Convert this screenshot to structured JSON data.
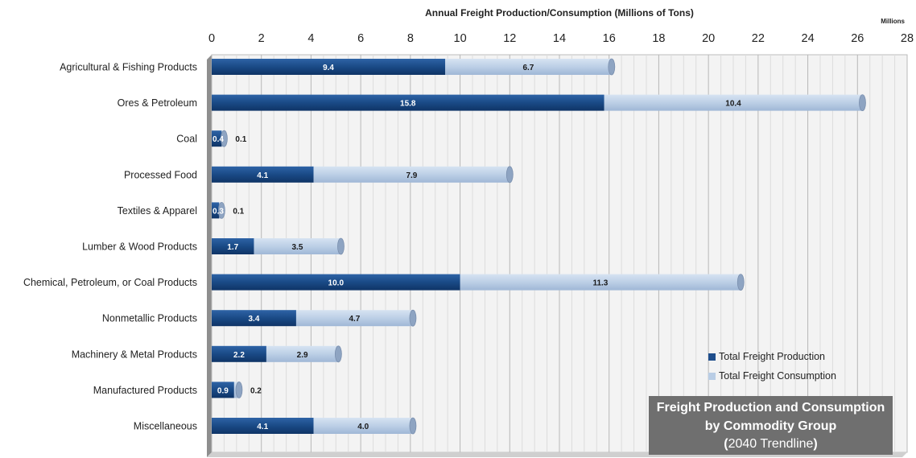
{
  "chart_data": {
    "type": "bar",
    "orientation": "horizontal",
    "stacked": true,
    "title": "Annual Freight Production/Consumption (Millions of Tons)",
    "unit_label": "Millions",
    "xlim": [
      0,
      28
    ],
    "xticks": [
      0,
      2,
      4,
      6,
      8,
      10,
      12,
      14,
      16,
      18,
      20,
      22,
      24,
      26,
      28
    ],
    "grid": true,
    "legend_position": "bottom-right",
    "categories": [
      "Agricultural & Fishing Products",
      "Ores & Petroleum",
      "Coal",
      "Processed Food",
      "Textiles & Apparel",
      "Lumber & Wood Products",
      "Chemical, Petroleum, or Coal Products",
      "Nonmetallic Products",
      "Machinery & Metal Products",
      "Manufactured Products",
      "Miscellaneous"
    ],
    "series": [
      {
        "name": "Total Freight Production",
        "color": "#1f4e8c",
        "values": [
          9.4,
          15.8,
          0.4,
          4.1,
          0.3,
          1.7,
          10.0,
          3.4,
          2.2,
          0.9,
          4.1
        ],
        "labels": [
          "9.4",
          "15.8",
          "0.4",
          "4.1",
          "0.3",
          "1.7",
          "10.0",
          "3.4",
          "2.2",
          "0.9",
          "4.1"
        ]
      },
      {
        "name": "Total Freight Consumption",
        "color": "#b9cde5",
        "values": [
          6.7,
          10.4,
          0.1,
          7.9,
          0.1,
          3.5,
          11.3,
          4.7,
          2.9,
          0.2,
          4.0
        ],
        "labels": [
          "6.7",
          "10.4",
          "0.1",
          "7.9",
          "0.1",
          "3.5",
          "11.3",
          "4.7",
          "2.9",
          "0.2",
          "4.0"
        ]
      }
    ]
  },
  "callout": {
    "line1": "Freight Production and Consumption",
    "line2": "by Commodity Group",
    "line3_open": "(",
    "line3_text": "2040 Trendline",
    "line3_close": ")"
  }
}
